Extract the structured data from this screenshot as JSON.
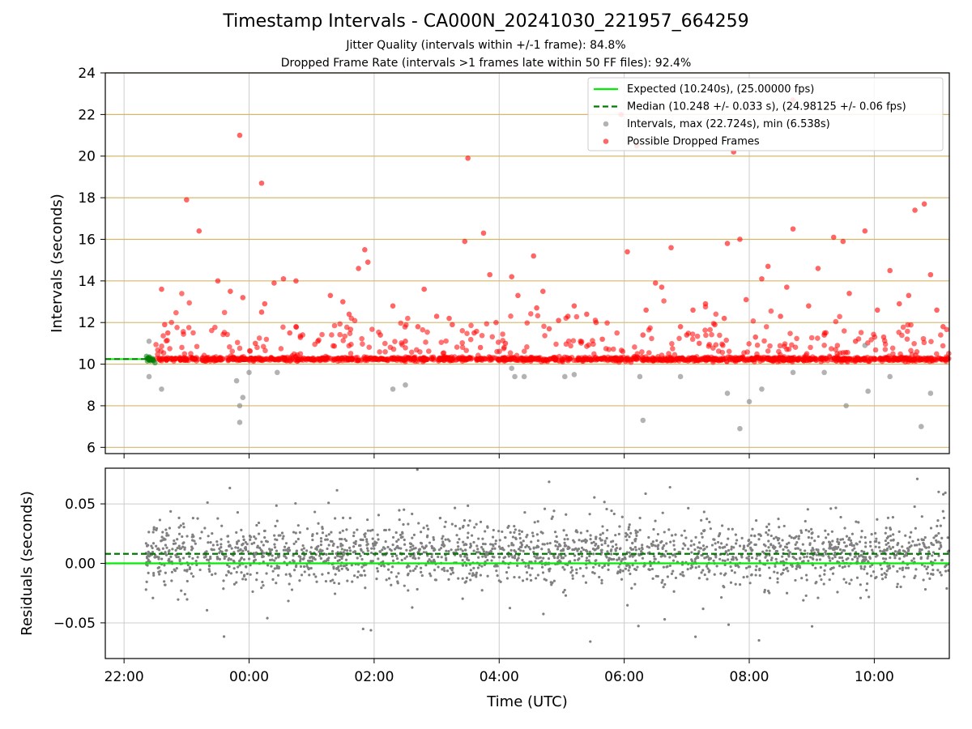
{
  "title": "Timestamp Intervals - CA000N_20241030_221957_664259",
  "subtitle1": "Jitter Quality (intervals within +/-1 frame): 84.8%",
  "subtitle2": "Dropped Frame Rate (intervals >1 frames late within 50 FF files): 92.4%",
  "colors": {
    "expected": "#00ee00",
    "median": "#007a00",
    "intervals": "#808080",
    "dropped": "#ff0000",
    "hgrid_top": "#d4b86a",
    "grid": "#cccccc"
  },
  "chart_data": [
    {
      "type": "scatter",
      "ylabel": "Intervals (seconds)",
      "ylim": [
        5.7,
        24
      ],
      "yticks": [
        6,
        8,
        10,
        12,
        14,
        16,
        18,
        20,
        22,
        24
      ],
      "x_axis": "time (UTC)",
      "xlim_hours": [
        21.7,
        35.2
      ],
      "expected_interval": 10.24,
      "median_interval": 10.248,
      "legend": [
        {
          "label": "Expected (10.240s), (25.00000 fps)",
          "style": "line",
          "color_key": "expected"
        },
        {
          "label": "Median (10.248 +/- 0.033 s), (24.98125 +/- 0.06 fps)",
          "style": "dashed",
          "color_key": "median"
        },
        {
          "label": "Intervals, max (22.724s), min (6.538s)",
          "style": "dot",
          "color_key": "intervals"
        },
        {
          "label": "Possible Dropped Frames",
          "style": "dot",
          "color_key": "dropped"
        }
      ],
      "dropped_points": [
        [
          22.6,
          13.6
        ],
        [
          22.65,
          11.9
        ],
        [
          22.7,
          11.5
        ],
        [
          23.0,
          17.9
        ],
        [
          23.2,
          16.4
        ],
        [
          23.5,
          14.0
        ],
        [
          23.7,
          13.5
        ],
        [
          23.9,
          13.2
        ],
        [
          23.85,
          21.0
        ],
        [
          24.1,
          11.0
        ],
        [
          24.2,
          12.5
        ],
        [
          24.25,
          12.9
        ],
        [
          24.4,
          13.9
        ],
        [
          24.55,
          14.1
        ],
        [
          24.65,
          11.5
        ],
        [
          24.75,
          11.8
        ],
        [
          24.75,
          14.0
        ],
        [
          24.2,
          18.7
        ],
        [
          25.1,
          11.1
        ],
        [
          25.3,
          13.3
        ],
        [
          25.5,
          13.0
        ],
        [
          25.6,
          12.4
        ],
        [
          25.75,
          14.6
        ],
        [
          25.85,
          15.5
        ],
        [
          25.9,
          14.9
        ],
        [
          26.1,
          11.4
        ],
        [
          26.3,
          12.8
        ],
        [
          26.5,
          11.1
        ],
        [
          26.7,
          11.8
        ],
        [
          26.8,
          13.6
        ],
        [
          27.0,
          12.3
        ],
        [
          27.2,
          12.2
        ],
        [
          27.25,
          11.9
        ],
        [
          27.45,
          15.9
        ],
        [
          27.5,
          19.9
        ],
        [
          27.6,
          11.5
        ],
        [
          27.7,
          10.8
        ],
        [
          27.75,
          16.3
        ],
        [
          27.85,
          14.3
        ],
        [
          27.95,
          12.0
        ],
        [
          28.1,
          11.0
        ],
        [
          28.2,
          14.2
        ],
        [
          28.3,
          13.3
        ],
        [
          28.55,
          15.2
        ],
        [
          28.6,
          12.7
        ],
        [
          28.7,
          13.5
        ],
        [
          28.8,
          11.7
        ],
        [
          28.95,
          12.1
        ],
        [
          29.1,
          12.3
        ],
        [
          29.2,
          12.8
        ],
        [
          29.3,
          11.1
        ],
        [
          29.4,
          12.4
        ],
        [
          29.55,
          12.0
        ],
        [
          29.65,
          11.2
        ],
        [
          29.95,
          22.0
        ],
        [
          30.05,
          15.4
        ],
        [
          30.2,
          20.5
        ],
        [
          30.3,
          11.4
        ],
        [
          30.35,
          12.6
        ],
        [
          30.5,
          13.9
        ],
        [
          30.6,
          13.7
        ],
        [
          30.75,
          15.6
        ],
        [
          30.9,
          11.8
        ],
        [
          31.0,
          11.4
        ],
        [
          31.1,
          12.6
        ],
        [
          31.2,
          11.0
        ],
        [
          31.3,
          12.9
        ],
        [
          31.45,
          11.9
        ],
        [
          31.6,
          12.2
        ],
        [
          31.65,
          15.8
        ],
        [
          31.75,
          20.2
        ],
        [
          31.85,
          16.0
        ],
        [
          31.95,
          13.1
        ],
        [
          32.1,
          11.3
        ],
        [
          32.2,
          14.1
        ],
        [
          32.3,
          14.7
        ],
        [
          32.5,
          12.3
        ],
        [
          32.6,
          13.7
        ],
        [
          32.7,
          22.7
        ],
        [
          32.7,
          16.5
        ],
        [
          32.95,
          12.8
        ],
        [
          33.1,
          14.6
        ],
        [
          33.2,
          11.4
        ],
        [
          33.35,
          16.1
        ],
        [
          33.5,
          15.9
        ],
        [
          33.6,
          13.4
        ],
        [
          33.7,
          11.1
        ],
        [
          33.85,
          16.4
        ],
        [
          34.05,
          12.6
        ],
        [
          34.15,
          11.3
        ],
        [
          34.25,
          14.5
        ],
        [
          34.4,
          12.9
        ],
        [
          34.55,
          13.3
        ],
        [
          34.65,
          17.4
        ],
        [
          34.8,
          17.7
        ],
        [
          34.9,
          14.3
        ],
        [
          35.0,
          12.6
        ],
        [
          35.1,
          11.8
        ]
      ],
      "gray_points": [
        [
          22.4,
          11.1
        ],
        [
          22.4,
          9.4
        ],
        [
          22.6,
          8.8
        ],
        [
          23.8,
          9.2
        ],
        [
          23.85,
          8.0
        ],
        [
          23.85,
          7.2
        ],
        [
          23.9,
          8.4
        ],
        [
          24.0,
          9.6
        ],
        [
          24.45,
          9.6
        ],
        [
          26.3,
          8.8
        ],
        [
          26.5,
          9.0
        ],
        [
          28.2,
          9.8
        ],
        [
          28.25,
          9.4
        ],
        [
          28.4,
          9.4
        ],
        [
          29.05,
          9.4
        ],
        [
          29.2,
          9.5
        ],
        [
          30.25,
          9.4
        ],
        [
          30.3,
          7.3
        ],
        [
          30.9,
          9.4
        ],
        [
          31.65,
          8.6
        ],
        [
          31.85,
          6.9
        ],
        [
          32.0,
          8.2
        ],
        [
          32.2,
          8.8
        ],
        [
          32.7,
          9.6
        ],
        [
          33.2,
          9.6
        ],
        [
          33.55,
          8.0
        ],
        [
          33.85,
          10.9
        ],
        [
          33.9,
          8.7
        ],
        [
          34.25,
          9.4
        ],
        [
          34.75,
          7.0
        ],
        [
          34.9,
          8.6
        ]
      ]
    },
    {
      "type": "scatter",
      "ylabel": "Residuals (seconds)",
      "ylim": [
        -0.08,
        0.08
      ],
      "yticks": [
        -0.05,
        0.0,
        0.05
      ],
      "ytick_labels": [
        "−0.05",
        "0.00",
        "0.05"
      ],
      "xlabel": "Time (UTC)",
      "xticks": [
        "22:00",
        "00:00",
        "02:00",
        "04:00",
        "06:00",
        "08:00",
        "10:00"
      ],
      "expected_residual": 0.0,
      "median_residual": 0.008
    }
  ]
}
